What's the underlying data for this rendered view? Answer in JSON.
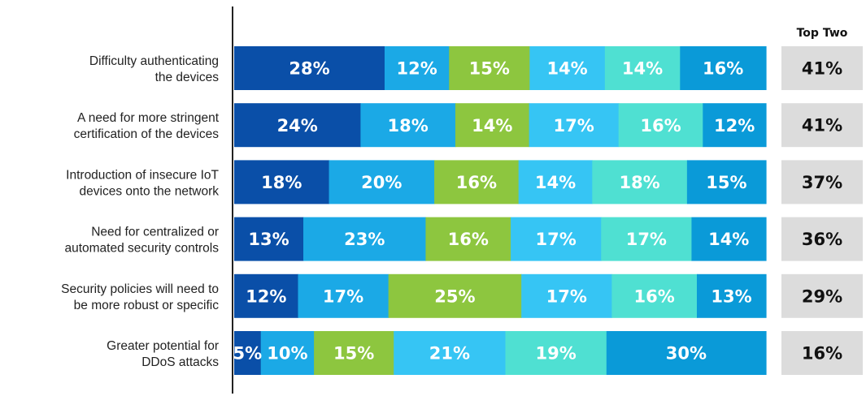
{
  "chart_data": {
    "type": "bar",
    "orientation": "horizontal",
    "stacked": true,
    "categories": [
      [
        "Difficulty authenticating",
        "the devices"
      ],
      [
        "A need for more stringent",
        "certification of the devices"
      ],
      [
        "Introduction of insecure IoT",
        "devices onto the network"
      ],
      [
        "Need for centralized or",
        "automated security controls"
      ],
      [
        "Security policies will need to",
        "be more robust or specific"
      ],
      [
        "Greater potential for",
        "DDoS attacks"
      ]
    ],
    "series": [
      {
        "color": "#0a4fa8",
        "values": [
          28,
          24,
          18,
          13,
          12,
          5
        ]
      },
      {
        "color": "#1ba9e6",
        "values": [
          12,
          18,
          20,
          23,
          17,
          10
        ]
      },
      {
        "color": "#8dc63f",
        "values": [
          15,
          14,
          16,
          16,
          25,
          15
        ]
      },
      {
        "color": "#36c5f4",
        "values": [
          14,
          17,
          14,
          17,
          17,
          21
        ]
      },
      {
        "color": "#4fe0d2",
        "values": [
          14,
          16,
          18,
          17,
          16,
          19
        ]
      },
      {
        "color": "#0a9ad8",
        "values": [
          16,
          12,
          15,
          14,
          13,
          30
        ]
      }
    ],
    "value_suffix": "%",
    "top_two_header": "Top Two",
    "top_two": [
      "41%",
      "41%",
      "37%",
      "36%",
      "29%",
      "16%"
    ],
    "top_two_box_color": "#dcdcdc",
    "grid": false
  }
}
